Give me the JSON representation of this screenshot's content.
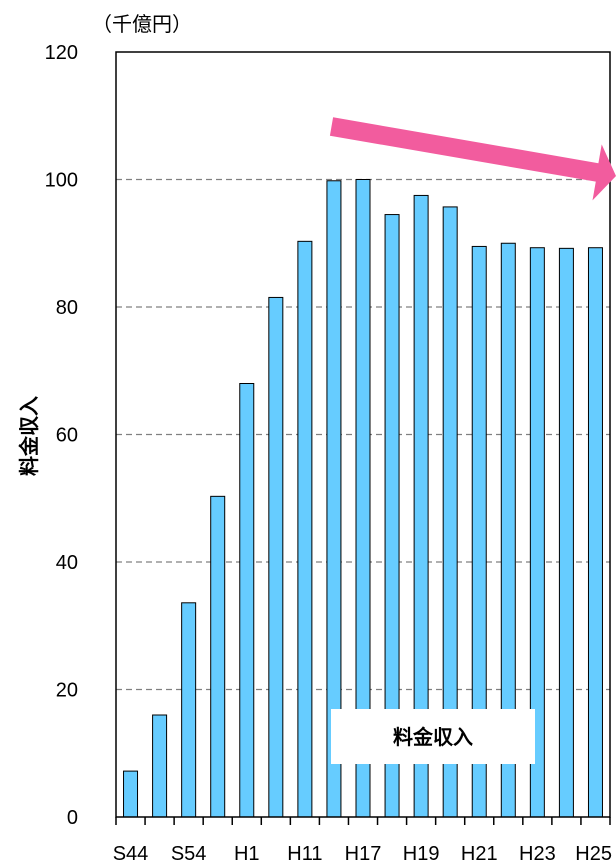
{
  "chart_data": {
    "type": "bar",
    "unit_label": "（千億円）",
    "ylabel": "料金収入",
    "legend_label": "料金収入",
    "ylim": [
      0,
      120
    ],
    "yticks": [
      0,
      20,
      40,
      60,
      80,
      100,
      120
    ],
    "grid": "horizontal dashed",
    "categories": [
      "S44",
      "",
      "S54",
      "",
      "H1",
      "",
      "H11",
      "",
      "H17",
      "",
      "H19",
      "",
      "H21",
      "",
      "H23",
      "",
      "H25"
    ],
    "values": [
      7.2,
      16.0,
      33.6,
      50.3,
      68.0,
      81.5,
      90.3,
      99.8,
      100.0,
      94.5,
      97.5,
      95.7,
      89.5,
      90.0,
      89.3,
      89.2,
      89.3
    ],
    "trend_arrow": "decreasing (pink arrow)",
    "colors": {
      "bar": "#66CCFF",
      "bar_edge": "#000000",
      "arrow": "#F25C9E",
      "grid": "#808080"
    }
  }
}
